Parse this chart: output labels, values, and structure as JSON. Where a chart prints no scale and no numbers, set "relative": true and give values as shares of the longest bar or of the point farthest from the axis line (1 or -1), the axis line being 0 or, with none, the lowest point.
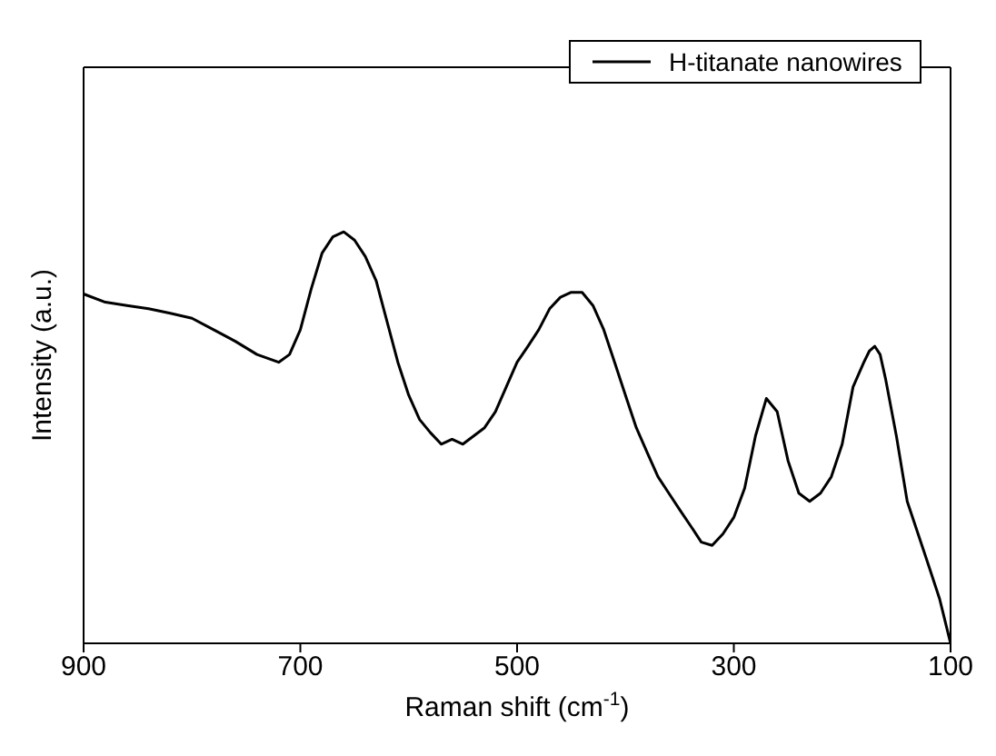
{
  "chart_data": {
    "type": "line",
    "relative": true,
    "xlabel": "Raman shift (cm$^{-1}$)",
    "ylabel": "Intensity (a.u.)",
    "x": [
      900,
      880,
      860,
      840,
      820,
      800,
      780,
      760,
      740,
      720,
      710,
      700,
      690,
      680,
      670,
      660,
      650,
      640,
      630,
      620,
      610,
      600,
      590,
      580,
      570,
      560,
      550,
      540,
      530,
      520,
      510,
      500,
      490,
      480,
      470,
      460,
      450,
      440,
      430,
      420,
      410,
      400,
      390,
      380,
      370,
      360,
      350,
      340,
      330,
      320,
      310,
      300,
      290,
      280,
      270,
      260,
      250,
      240,
      230,
      220,
      210,
      200,
      190,
      180,
      175,
      170,
      165,
      160,
      150,
      140,
      130,
      120,
      110,
      100
    ],
    "xlim": [
      900,
      100
    ],
    "xticks": [
      900,
      700,
      500,
      300,
      100
    ],
    "series": [
      {
        "name": "H-titanate nanowires",
        "color": "#000000",
        "values": [
          0.849,
          0.829,
          0.821,
          0.813,
          0.802,
          0.79,
          0.762,
          0.734,
          0.702,
          0.683,
          0.702,
          0.762,
          0.861,
          0.948,
          0.988,
          1,
          0.98,
          0.94,
          0.881,
          0.782,
          0.683,
          0.603,
          0.544,
          0.512,
          0.484,
          0.496,
          0.484,
          0.504,
          0.524,
          0.563,
          0.623,
          0.683,
          0.722,
          0.762,
          0.813,
          0.841,
          0.853,
          0.853,
          0.821,
          0.762,
          0.683,
          0.603,
          0.524,
          0.464,
          0.405,
          0.365,
          0.325,
          0.286,
          0.246,
          0.238,
          0.266,
          0.306,
          0.377,
          0.504,
          0.595,
          0.563,
          0.444,
          0.365,
          0.345,
          0.365,
          0.405,
          0.484,
          0.623,
          0.683,
          0.71,
          0.722,
          0.702,
          0.643,
          0.504,
          0.345,
          0.266,
          0.187,
          0.107,
          0
        ]
      }
    ],
    "legend": "top right",
    "marker": "none",
    "line_style": "solid",
    "grid": false
  }
}
